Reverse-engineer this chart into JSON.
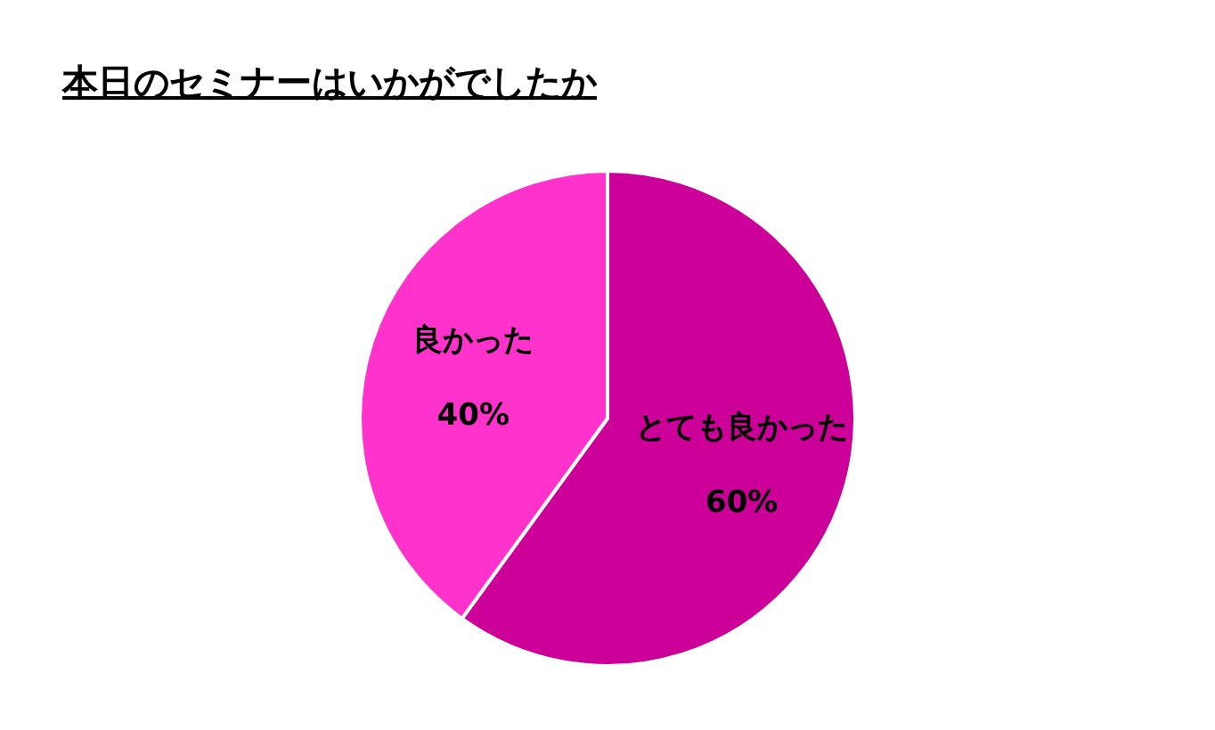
{
  "chart_data": {
    "type": "pie",
    "title": "本日のセミナーはいかがでしたか",
    "categories": [
      "とても良かった",
      "良かった"
    ],
    "values": [
      60,
      40
    ],
    "colors": [
      "#cc0099",
      "#ff33cc"
    ],
    "value_labels": [
      "60%",
      "40%"
    ],
    "legend": false
  }
}
